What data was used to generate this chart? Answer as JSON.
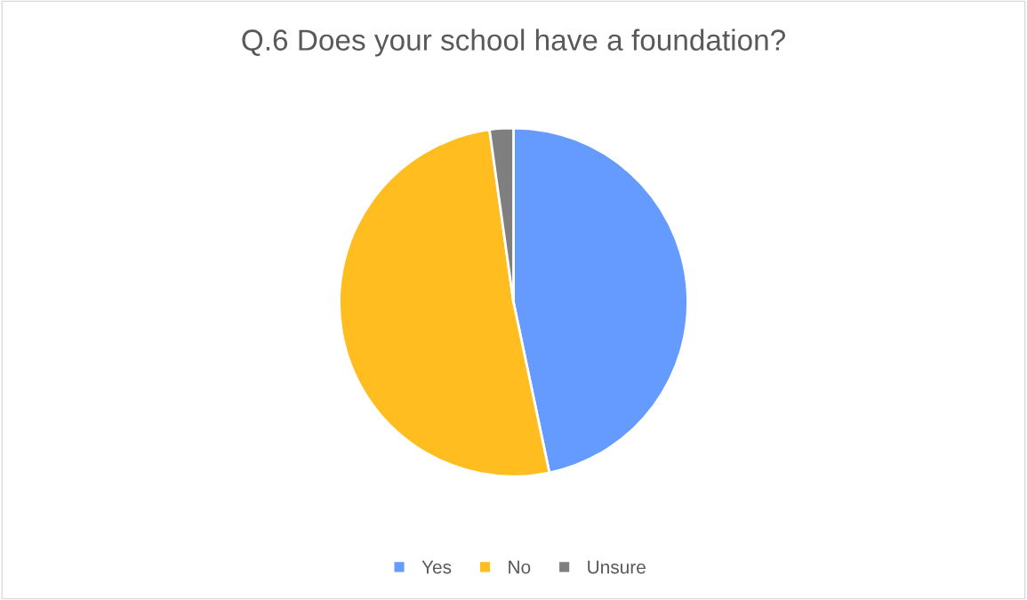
{
  "chart_data": {
    "type": "pie",
    "title": "Q.6 Does your school have a foundation?",
    "categories": [
      "Yes",
      "No",
      "Unsure"
    ],
    "values": [
      46.7,
      51.1,
      2.2
    ],
    "colors": [
      "#659bff",
      "#ffbd1f",
      "#7f7f7f"
    ],
    "legend": "bottom"
  }
}
